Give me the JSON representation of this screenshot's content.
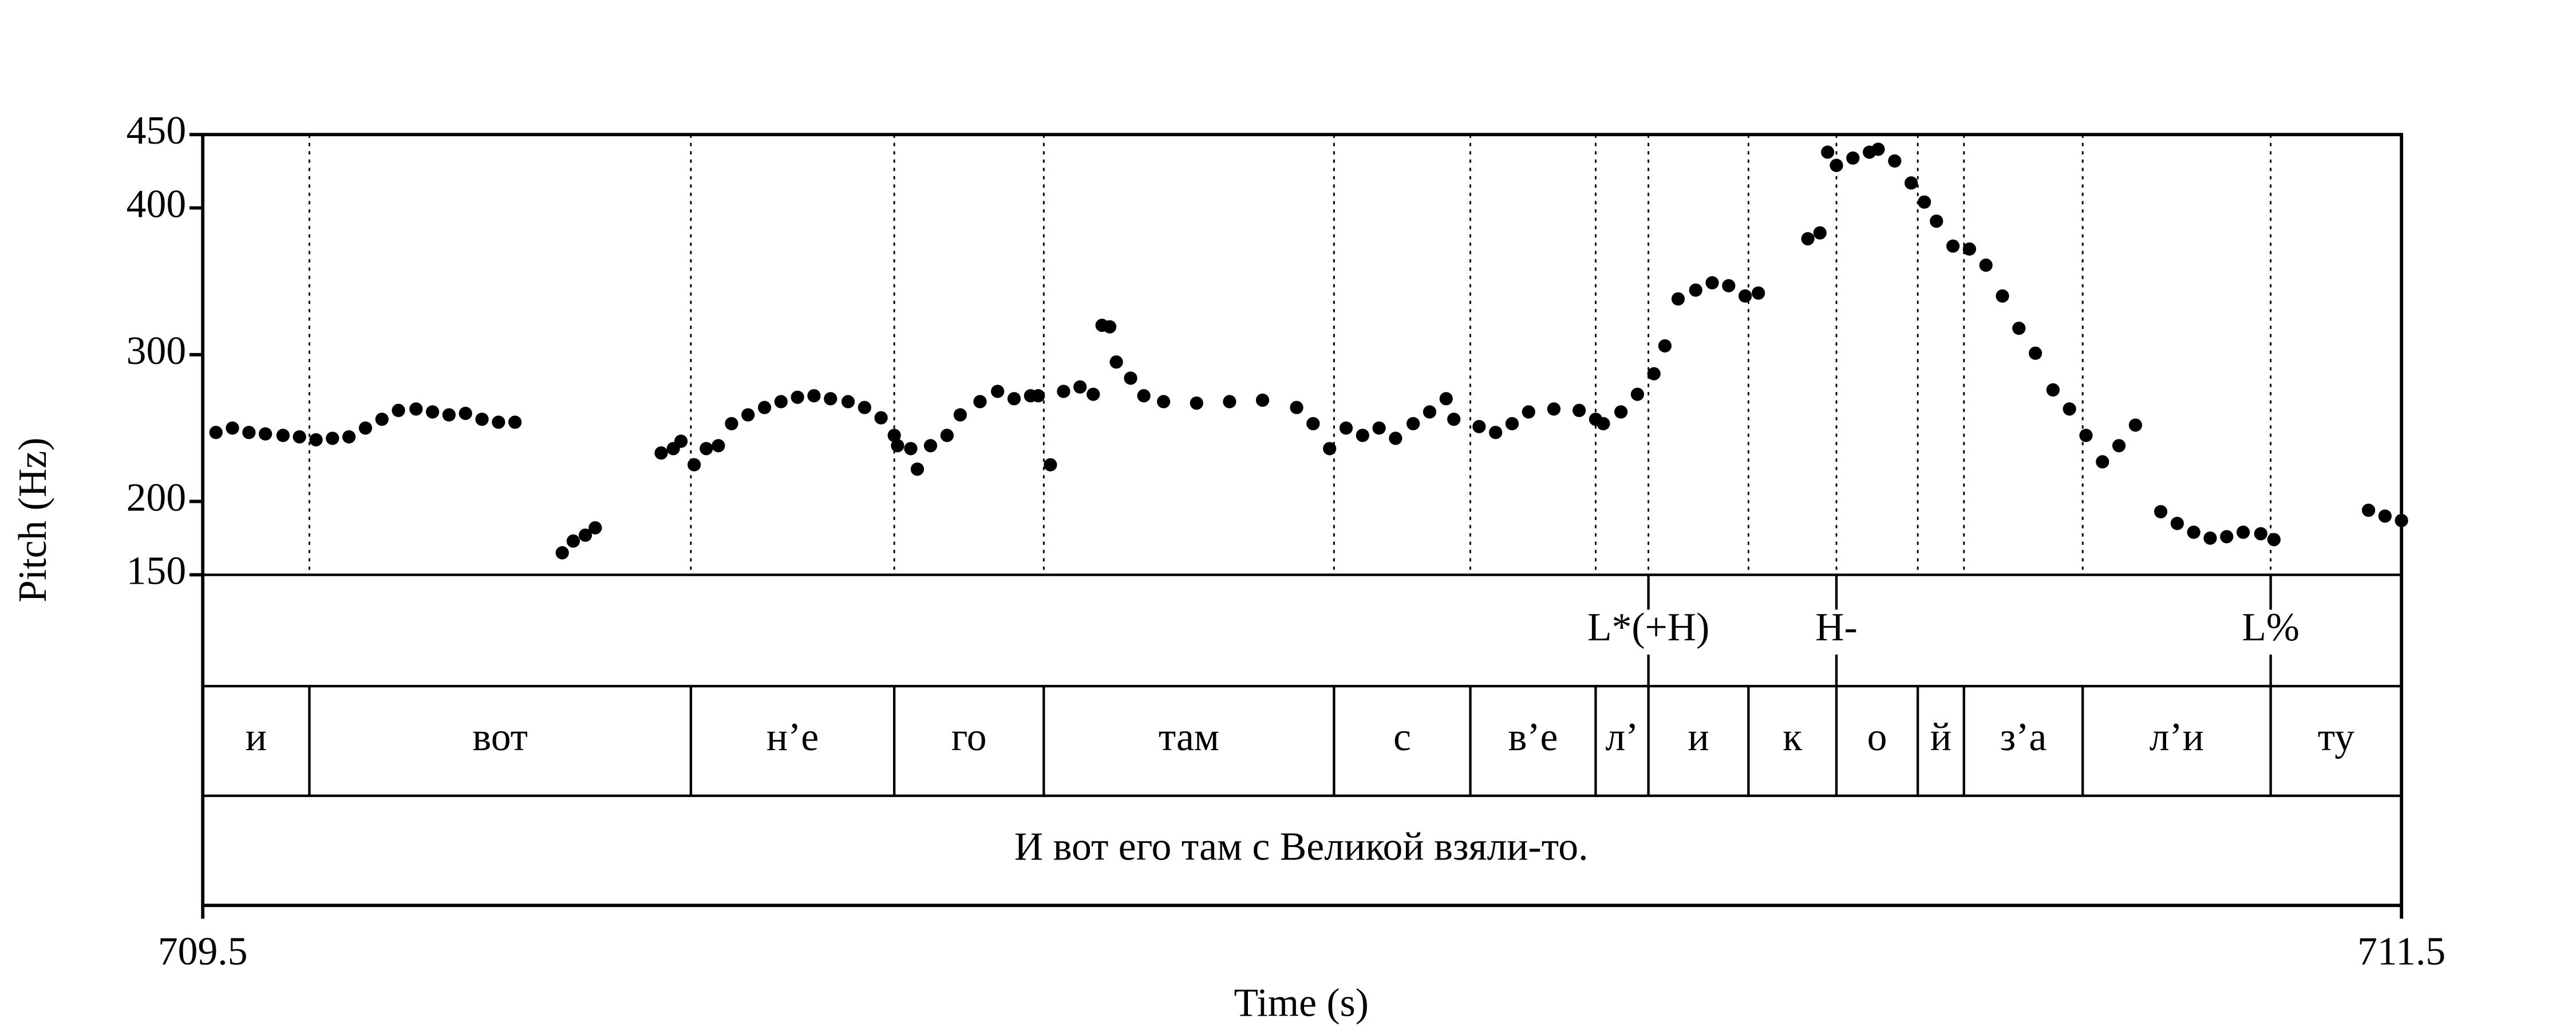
{
  "chart_data": {
    "type": "scatter",
    "ylabel": "Pitch (Hz)",
    "xlabel": "Time (s)",
    "xlim": [
      709.5,
      711.5
    ],
    "xticks": [
      709.5,
      711.5
    ],
    "ylim": [
      150,
      450
    ],
    "yticks": [
      150,
      200,
      300,
      400,
      450
    ],
    "color": "#000000",
    "x": [
      709.512,
      709.527,
      709.542,
      709.557,
      709.573,
      709.588,
      709.603,
      709.618,
      709.633,
      709.648,
      709.663,
      709.678,
      709.694,
      709.709,
      709.724,
      709.739,
      709.754,
      709.769,
      709.784,
      709.827,
      709.837,
      709.848,
      709.857,
      709.917,
      709.928,
      709.935,
      709.947,
      709.958,
      709.969,
      709.981,
      709.996,
      710.011,
      710.026,
      710.041,
      710.056,
      710.071,
      710.087,
      710.102,
      710.117,
      710.129,
      710.132,
      710.144,
      710.15,
      710.162,
      710.177,
      710.189,
      710.207,
      710.223,
      710.238,
      710.253,
      710.26,
      710.271,
      710.283,
      710.298,
      710.31,
      710.318,
      710.325,
      710.331,
      710.344,
      710.356,
      710.374,
      710.404,
      710.434,
      710.464,
      710.495,
      710.51,
      710.525,
      710.54,
      710.555,
      710.57,
      710.585,
      710.601,
      710.616,
      710.631,
      710.638,
      710.661,
      710.676,
      710.691,
      710.706,
      710.729,
      710.752,
      710.767,
      710.774,
      710.79,
      710.805,
      710.82,
      710.83,
      710.842,
      710.858,
      710.873,
      710.888,
      710.903,
      710.915,
      710.96,
      710.971,
      710.978,
      710.986,
      711.001,
      711.016,
      711.024,
      711.039,
      711.054,
      711.066,
      711.077,
      711.092,
      711.107,
      711.122,
      711.137,
      711.152,
      711.167,
      711.183,
      711.198,
      711.213,
      711.228,
      711.243,
      711.258,
      711.281,
      711.296,
      711.311,
      711.326,
      711.341,
      711.356,
      711.372,
      711.384,
      711.47,
      711.485,
      711.5
    ],
    "values": [
      247,
      250,
      247,
      246,
      245,
      244,
      242,
      243,
      244,
      250,
      256,
      262,
      263,
      261,
      259,
      260,
      256,
      254,
      254,
      165,
      173,
      177,
      182,
      233,
      236,
      241,
      225,
      236,
      238,
      253,
      259,
      264,
      268,
      271,
      272,
      270,
      268,
      264,
      257,
      245,
      238,
      236,
      222,
      238,
      245,
      259,
      268,
      275,
      270,
      272,
      272,
      225,
      275,
      278,
      273,
      320,
      319,
      295,
      284,
      272,
      268,
      267,
      268,
      269,
      264,
      253,
      236,
      250,
      245,
      250,
      243,
      253,
      261,
      270,
      256,
      251,
      247,
      253,
      261,
      263,
      262,
      256,
      253,
      261,
      273,
      287,
      306,
      338,
      344,
      349,
      347,
      340,
      342,
      379,
      383,
      438,
      429,
      434,
      438,
      440,
      432,
      417,
      404,
      391,
      374,
      372,
      361,
      340,
      318,
      301,
      276,
      263,
      245,
      227,
      238,
      252,
      193,
      185,
      179,
      175,
      176,
      179,
      178,
      174,
      194,
      190,
      187
    ],
    "tones": [
      {
        "time": 710.815,
        "label": "L*(+H)"
      },
      {
        "time": 710.986,
        "label": "H-"
      },
      {
        "time": 711.381,
        "label": "L%"
      }
    ],
    "syllables": {
      "boundaries": [
        709.5,
        709.597,
        709.944,
        710.129,
        710.265,
        710.529,
        710.653,
        710.767,
        710.815,
        710.906,
        710.986,
        711.06,
        711.102,
        711.21,
        711.381,
        711.5
      ],
      "labels": [
        "и",
        "вот",
        "н’е",
        "го",
        "там",
        "с",
        "в’е",
        "л’",
        "и",
        "к",
        "о",
        "й",
        "з’а",
        "л’и",
        "ту"
      ]
    },
    "sentence": "И вот его там с Великой взяли-то."
  }
}
